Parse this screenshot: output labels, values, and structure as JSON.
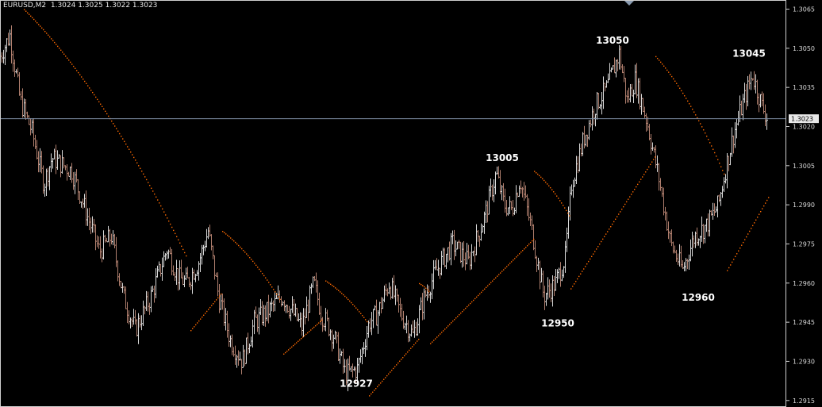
{
  "header": {
    "symbol": "EURUSD,M2",
    "quote": "1.3024 1.3025 1.3022 1.3023"
  },
  "chart_data": {
    "type": "line",
    "title": "",
    "xlabel": "",
    "ylabel": "",
    "ylim": [
      1.29125,
      1.30685
    ],
    "y_ticks": [
      "1.3065",
      "1.3050",
      "1.3035",
      "1.3020",
      "1.3005",
      "1.2990",
      "1.2975",
      "1.2960",
      "1.2945",
      "1.2930",
      "1.2915"
    ],
    "current_price": "1.3023",
    "grid": false,
    "price_path": [
      [
        0,
        1.3047
      ],
      [
        12,
        1.3055
      ],
      [
        25,
        1.303
      ],
      [
        40,
        1.3018
      ],
      [
        55,
        1.2998
      ],
      [
        65,
        1.3008
      ],
      [
        90,
        1.3003
      ],
      [
        105,
        1.299
      ],
      [
        125,
        1.2972
      ],
      [
        140,
        1.2978
      ],
      [
        155,
        1.2955
      ],
      [
        170,
        1.2942
      ],
      [
        190,
        1.2955
      ],
      [
        210,
        1.2973
      ],
      [
        225,
        1.2962
      ],
      [
        235,
        1.296
      ],
      [
        250,
        1.2968
      ],
      [
        262,
        1.298
      ],
      [
        275,
        1.2955
      ],
      [
        290,
        1.2938
      ],
      [
        305,
        1.293
      ],
      [
        320,
        1.2945
      ],
      [
        340,
        1.295
      ],
      [
        355,
        1.2955
      ],
      [
        370,
        1.2948
      ],
      [
        380,
        1.2943
      ],
      [
        395,
        1.296
      ],
      [
        405,
        1.2948
      ],
      [
        420,
        1.294
      ],
      [
        435,
        1.2925
      ],
      [
        450,
        1.2927
      ],
      [
        465,
        1.2945
      ],
      [
        475,
        1.2948
      ],
      [
        490,
        1.296
      ],
      [
        505,
        1.2948
      ],
      [
        520,
        1.294
      ],
      [
        535,
        1.2955
      ],
      [
        550,
        1.2965
      ],
      [
        570,
        1.2975
      ],
      [
        590,
        1.2968
      ],
      [
        610,
        1.2985
      ],
      [
        625,
        1.3002
      ],
      [
        635,
        1.299
      ],
      [
        645,
        1.2988
      ],
      [
        655,
        1.3
      ],
      [
        670,
        1.298
      ],
      [
        685,
        1.2955
      ],
      [
        700,
        1.296
      ],
      [
        712,
        1.297
      ],
      [
        720,
        1.2998
      ],
      [
        735,
        1.3015
      ],
      [
        750,
        1.3028
      ],
      [
        765,
        1.3035
      ],
      [
        780,
        1.3048
      ],
      [
        790,
        1.303
      ],
      [
        800,
        1.3038
      ],
      [
        815,
        1.3022
      ],
      [
        830,
        1.3
      ],
      [
        845,
        1.2975
      ],
      [
        860,
        1.2965
      ],
      [
        875,
        1.2978
      ],
      [
        890,
        1.2982
      ],
      [
        905,
        1.299
      ],
      [
        915,
        1.3005
      ],
      [
        925,
        1.3018
      ],
      [
        935,
        1.3028
      ],
      [
        948,
        1.304
      ],
      [
        960,
        1.3028
      ],
      [
        967,
        1.3023
      ]
    ],
    "sar_segments": [
      [
        [
          30,
          1.3065
        ],
        [
          235,
          1.297
        ]
      ],
      [
        [
          240,
          1.2942
        ],
        [
          278,
          1.2956
        ]
      ],
      [
        [
          280,
          1.298
        ],
        [
          352,
          1.2954
        ]
      ],
      [
        [
          357,
          1.2933
        ],
        [
          405,
          1.2946
        ]
      ],
      [
        [
          410,
          1.2961
        ],
        [
          463,
          1.2945
        ]
      ],
      [
        [
          465,
          1.2917
        ],
        [
          528,
          1.2939
        ]
      ],
      [
        [
          528,
          1.296
        ],
        [
          540,
          1.2957
        ]
      ],
      [
        [
          542,
          1.2937
        ],
        [
          672,
          1.2977
        ]
      ],
      [
        [
          673,
          1.3003
        ],
        [
          717,
          1.2986
        ]
      ],
      [
        [
          719,
          1.2958
        ],
        [
          826,
          1.3009
        ]
      ],
      [
        [
          826,
          1.3047
        ],
        [
          912,
          1.3002
        ]
      ],
      [
        [
          916,
          1.2965
        ],
        [
          968,
          1.2993
        ]
      ]
    ],
    "annotations": [
      {
        "label": "13050",
        "x": 772,
        "y": 1.305
      },
      {
        "label": "13045",
        "x": 944,
        "y": 1.3045
      },
      {
        "label": "13005",
        "x": 633,
        "y": 1.3005
      },
      {
        "label": "12950",
        "x": 703,
        "y": 1.295
      },
      {
        "label": "12960",
        "x": 880,
        "y": 1.296
      },
      {
        "label": "12927",
        "x": 449,
        "y": 1.2927
      }
    ]
  },
  "colors": {
    "background": "#000000",
    "bar_up": "#d8d8d8",
    "bar_down": "#b07f6e",
    "sar": "#ff6a00",
    "price_line": "#7f8fa6",
    "frame": "#cfcfcf"
  }
}
